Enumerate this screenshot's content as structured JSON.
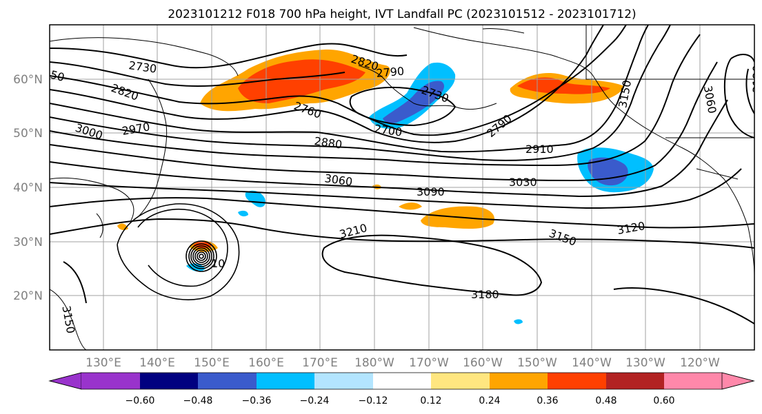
{
  "title": "2023101212 F018 700 hPa height, IVT Landfall PC (2023101512 - 2023101712)",
  "map": {
    "lon_ticks": [
      "130°E",
      "140°E",
      "150°E",
      "160°E",
      "170°E",
      "180°W",
      "170°W",
      "160°W",
      "150°W",
      "140°W",
      "130°W",
      "120°W"
    ],
    "lat_ticks": [
      "60°N",
      "50°N",
      "40°N",
      "30°N",
      "20°N"
    ],
    "contour_labels": [
      "2730",
      "2820",
      "50",
      "3000",
      "2970",
      "2760",
      "2820",
      "2790",
      "2730",
      "2700",
      "2880",
      "2790",
      "2910",
      "3120",
      "3060",
      "3090",
      "3030",
      "3060",
      "3120",
      "3210",
      "3150",
      "3180",
      "3150",
      "3150",
      "10"
    ],
    "colors": {
      "land_outline": "#000000",
      "grid": "#a0a0a0",
      "contour": "#000000"
    }
  },
  "colorbar": {
    "labels": [
      "−0.60",
      "−0.48",
      "−0.36",
      "−0.24",
      "−0.12",
      "0.12",
      "0.24",
      "0.36",
      "0.48",
      "0.60"
    ],
    "colors": [
      "#9933cc",
      "#000080",
      "#3a5bcc",
      "#00bfff",
      "#b3e5ff",
      "#ffffff",
      "#ffe680",
      "#ffa500",
      "#ff4000",
      "#b22222",
      "#ff88aa"
    ]
  }
}
